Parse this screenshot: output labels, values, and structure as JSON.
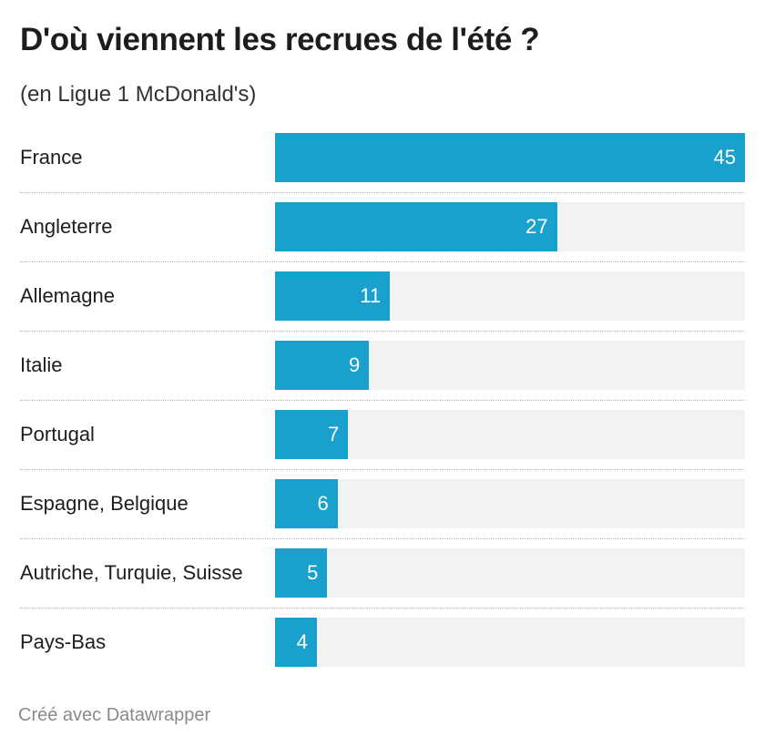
{
  "chart_data": {
    "type": "bar",
    "orientation": "horizontal",
    "title": "D'où viennent les recrues de l'été ?",
    "subtitle": "(en Ligue 1 McDonald's)",
    "categories": [
      "France",
      "Angleterre",
      "Allemagne",
      "Italie",
      "Portugal",
      "Espagne, Belgique",
      "Autriche, Turquie, Suisse",
      "Pays-Bas"
    ],
    "values": [
      45,
      27,
      11,
      9,
      7,
      6,
      5,
      4
    ],
    "xlim": [
      0,
      45
    ],
    "grid": false,
    "bar_color": "#1aa0cc",
    "track_color": "#f2f2f2"
  },
  "footer": "Créé avec Datawrapper"
}
